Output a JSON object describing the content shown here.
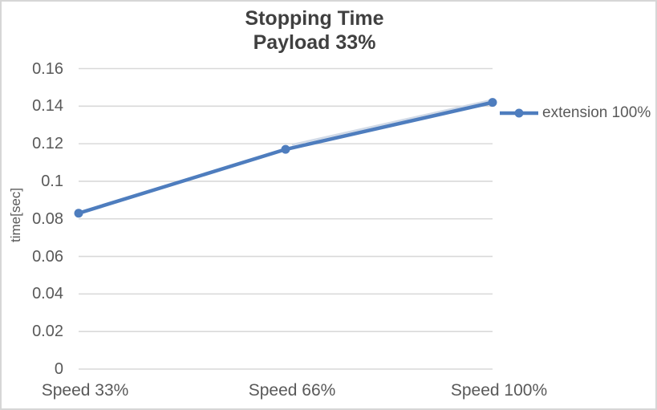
{
  "chart_data": {
    "type": "line",
    "title": "Stopping Time",
    "subtitle": "Payload 33%",
    "categories": [
      "Speed 33%",
      "Speed 66%",
      "Speed 100%"
    ],
    "series": [
      {
        "name": "extension 100%",
        "values": [
          0.083,
          0.117,
          0.142
        ]
      }
    ],
    "xlabel": "",
    "ylabel": "time[sec]",
    "ylim": [
      0,
      0.16
    ],
    "ytick_step": 0.02,
    "ytick_labels": [
      "0",
      "0.02",
      "0.04",
      "0.06",
      "0.08",
      "0.1",
      "0.12",
      "0.14",
      "0.16"
    ],
    "grid": true,
    "legend_position": "right"
  },
  "colors": {
    "accent_blue": "#4e7dbe",
    "highlight_sheen": "#cdd7e5",
    "gridline": "#d9d9d9",
    "axis_text": "#595959",
    "title_text": "#404040",
    "border": "#d6d6d6"
  }
}
